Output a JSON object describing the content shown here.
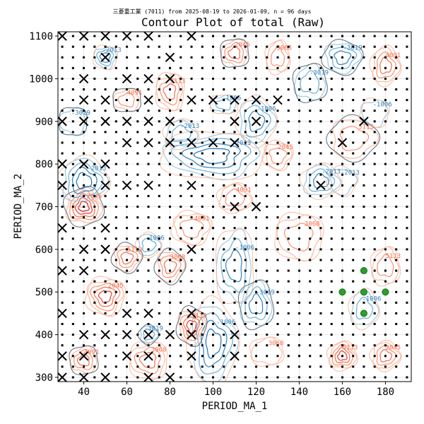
{
  "chart_data": {
    "type": "contour",
    "subtitle": "三菱重工業 (7011) from 2025-08-19 to 2026-01-09, n = 96 days",
    "title": "Contour Plot of total (Raw)",
    "xlabel": "PERIOD_MA_1",
    "ylabel": "PERIOD_MA_2",
    "xlim": [
      28,
      192
    ],
    "ylim": [
      290,
      1110
    ],
    "x_ticks": [
      "40",
      "60",
      "80",
      "100",
      "120",
      "140",
      "160",
      "180"
    ],
    "y_ticks": [
      "300",
      "400",
      "500",
      "600",
      "700",
      "800",
      "900",
      "1000",
      "1100"
    ],
    "grid": true,
    "contour_level_labels": [
      "-3019",
      "-2013",
      "-1006",
      "0",
      "2045",
      "3068",
      "4091",
      "5113"
    ],
    "colors": {
      "negative_strong": "#08519c",
      "negative_mid": "#3182bd",
      "negative_light": "#9ecae1",
      "zero": "#5a6a7a",
      "positive_light": "#fcbba1",
      "positive_mid": "#fb6a4a",
      "positive_strong": "#cb181d",
      "best_marker": "#2ca02c"
    },
    "markers": {
      "excluded_x": [
        [
          30,
          1100
        ],
        [
          40,
          1100
        ],
        [
          50,
          1100
        ],
        [
          60,
          1100
        ],
        [
          70,
          1100
        ],
        [
          90,
          1100
        ],
        [
          50,
          1050
        ],
        [
          80,
          1050
        ],
        [
          40,
          1000
        ],
        [
          60,
          1000
        ],
        [
          70,
          1000
        ],
        [
          80,
          1000
        ],
        [
          40,
          950
        ],
        [
          50,
          950
        ],
        [
          70,
          950
        ],
        [
          90,
          950
        ],
        [
          100,
          950
        ],
        [
          110,
          950
        ],
        [
          120,
          950
        ],
        [
          130,
          950
        ],
        [
          30,
          900
        ],
        [
          40,
          900
        ],
        [
          50,
          900
        ],
        [
          60,
          900
        ],
        [
          70,
          900
        ],
        [
          80,
          900
        ],
        [
          110,
          900
        ],
        [
          120,
          900
        ],
        [
          170,
          900
        ],
        [
          60,
          850
        ],
        [
          70,
          850
        ],
        [
          80,
          850
        ],
        [
          90,
          850
        ],
        [
          100,
          850
        ],
        [
          110,
          850
        ],
        [
          160,
          850
        ],
        [
          30,
          800
        ],
        [
          40,
          800
        ],
        [
          50,
          800
        ],
        [
          30,
          750
        ],
        [
          50,
          750
        ],
        [
          60,
          750
        ],
        [
          70,
          750
        ],
        [
          90,
          750
        ],
        [
          150,
          750
        ],
        [
          110,
          700
        ],
        [
          120,
          700
        ],
        [
          30,
          650
        ],
        [
          50,
          650
        ],
        [
          40,
          600
        ],
        [
          50,
          600
        ],
        [
          90,
          600
        ],
        [
          30,
          550
        ],
        [
          40,
          550
        ],
        [
          30,
          450
        ],
        [
          60,
          450
        ],
        [
          70,
          450
        ],
        [
          90,
          450
        ],
        [
          40,
          400
        ],
        [
          50,
          400
        ],
        [
          60,
          400
        ],
        [
          70,
          400
        ],
        [
          80,
          400
        ],
        [
          90,
          400
        ],
        [
          110,
          400
        ],
        [
          30,
          350
        ],
        [
          40,
          350
        ],
        [
          60,
          350
        ],
        [
          70,
          350
        ],
        [
          90,
          350
        ],
        [
          110,
          350
        ],
        [
          30,
          300
        ],
        [
          40,
          300
        ],
        [
          50,
          300
        ],
        [
          70,
          300
        ],
        [
          80,
          300
        ]
      ],
      "grid_points_x": [
        30,
        35,
        40,
        45,
        50,
        55,
        60,
        65,
        70,
        75,
        80,
        85,
        90,
        95,
        100,
        105,
        110,
        115,
        120,
        125,
        130,
        135,
        140,
        145,
        150,
        155,
        160,
        165,
        170,
        175,
        180,
        185,
        190
      ],
      "grid_points_y": [
        300,
        325,
        350,
        375,
        400,
        425,
        450,
        475,
        500,
        525,
        550,
        575,
        600,
        625,
        650,
        675,
        700,
        725,
        750,
        775,
        800,
        825,
        850,
        875,
        900,
        925,
        950,
        975,
        1000,
        1025,
        1050,
        1075,
        1100
      ],
      "best": [
        [
          170,
          550
        ],
        [
          160,
          500
        ],
        [
          170,
          500
        ],
        [
          180,
          500
        ],
        [
          170,
          450
        ]
      ]
    },
    "contour_blobs": [
      {
        "cx": 40,
        "cy": 700,
        "rx": 8,
        "ry": 40,
        "sign": 1,
        "strength": 5
      },
      {
        "cx": 40,
        "cy": 760,
        "rx": 10,
        "ry": 50,
        "sign": -1,
        "strength": 4
      },
      {
        "cx": 100,
        "cy": 380,
        "rx": 10,
        "ry": 90,
        "sign": -1,
        "strength": 4
      },
      {
        "cx": 90,
        "cy": 420,
        "rx": 6,
        "ry": 40,
        "sign": 1,
        "strength": 4
      },
      {
        "cx": 100,
        "cy": 820,
        "rx": 22,
        "ry": 50,
        "sign": -1,
        "strength": 4
      },
      {
        "cx": 110,
        "cy": 560,
        "rx": 8,
        "ry": 80,
        "sign": -1,
        "strength": 3
      },
      {
        "cx": 120,
        "cy": 470,
        "rx": 7,
        "ry": 50,
        "sign": -1,
        "strength": 3
      },
      {
        "cx": 150,
        "cy": 760,
        "rx": 8,
        "ry": 35,
        "sign": -1,
        "strength": 3
      },
      {
        "cx": 120,
        "cy": 900,
        "rx": 8,
        "ry": 50,
        "sign": -1,
        "strength": 3
      },
      {
        "cx": 160,
        "cy": 1050,
        "rx": 8,
        "ry": 35,
        "sign": -1,
        "strength": 3
      },
      {
        "cx": 50,
        "cy": 1050,
        "rx": 5,
        "ry": 25,
        "sign": -1,
        "strength": 3
      },
      {
        "cx": 105,
        "cy": 940,
        "rx": 6,
        "ry": 20,
        "sign": -1,
        "strength": 2
      },
      {
        "cx": 145,
        "cy": 990,
        "rx": 7,
        "ry": 40,
        "sign": -1,
        "strength": 2
      },
      {
        "cx": 85,
        "cy": 870,
        "rx": 7,
        "ry": 30,
        "sign": -1,
        "strength": 2
      },
      {
        "cx": 70,
        "cy": 610,
        "rx": 5,
        "ry": 25,
        "sign": -1,
        "strength": 2
      },
      {
        "cx": 60,
        "cy": 580,
        "rx": 6,
        "ry": 30,
        "sign": 1,
        "strength": 3
      },
      {
        "cx": 50,
        "cy": 490,
        "rx": 8,
        "ry": 40,
        "sign": 1,
        "strength": 4
      },
      {
        "cx": 70,
        "cy": 340,
        "rx": 8,
        "ry": 40,
        "sign": 1,
        "strength": 3
      },
      {
        "cx": 40,
        "cy": 340,
        "rx": 6,
        "ry": 30,
        "sign": 1,
        "strength": 3
      },
      {
        "cx": 160,
        "cy": 350,
        "rx": 6,
        "ry": 30,
        "sign": 1,
        "strength": 4
      },
      {
        "cx": 180,
        "cy": 350,
        "rx": 6,
        "ry": 30,
        "sign": 1,
        "strength": 3
      },
      {
        "cx": 80,
        "cy": 560,
        "rx": 6,
        "ry": 35,
        "sign": 1,
        "strength": 3
      },
      {
        "cx": 90,
        "cy": 650,
        "rx": 8,
        "ry": 35,
        "sign": 1,
        "strength": 2
      },
      {
        "cx": 80,
        "cy": 970,
        "rx": 6,
        "ry": 40,
        "sign": 1,
        "strength": 3
      },
      {
        "cx": 110,
        "cy": 1060,
        "rx": 6,
        "ry": 30,
        "sign": 1,
        "strength": 3
      },
      {
        "cx": 130,
        "cy": 1050,
        "rx": 5,
        "ry": 35,
        "sign": 1,
        "strength": 2
      },
      {
        "cx": 180,
        "cy": 1030,
        "rx": 6,
        "ry": 40,
        "sign": 1,
        "strength": 3
      },
      {
        "cx": 165,
        "cy": 860,
        "rx": 10,
        "ry": 45,
        "sign": 1,
        "strength": 2
      },
      {
        "cx": 130,
        "cy": 820,
        "rx": 6,
        "ry": 30,
        "sign": 1,
        "strength": 2
      },
      {
        "cx": 140,
        "cy": 630,
        "rx": 10,
        "ry": 50,
        "sign": 1,
        "strength": 2
      },
      {
        "cx": 60,
        "cy": 950,
        "rx": 6,
        "ry": 25,
        "sign": 1,
        "strength": 2
      },
      {
        "cx": 180,
        "cy": 560,
        "rx": 6,
        "ry": 40,
        "sign": 1,
        "strength": 2
      },
      {
        "cx": 170,
        "cy": 460,
        "rx": 6,
        "ry": 40,
        "sign": -1,
        "strength": 2
      },
      {
        "cx": 70,
        "cy": 400,
        "rx": 4,
        "ry": 20,
        "sign": -1,
        "strength": 2
      },
      {
        "cx": 160,
        "cy": 760,
        "rx": 6,
        "ry": 30,
        "sign": -1,
        "strength": 1
      },
      {
        "cx": 175,
        "cy": 920,
        "rx": 6,
        "ry": 30,
        "sign": -1,
        "strength": 1
      },
      {
        "cx": 35,
        "cy": 900,
        "rx": 6,
        "ry": 30,
        "sign": -1,
        "strength": 1
      },
      {
        "cx": 125,
        "cy": 360,
        "rx": 7,
        "ry": 30,
        "sign": 1,
        "strength": 1
      },
      {
        "cx": 110,
        "cy": 720,
        "rx": 7,
        "ry": 30,
        "sign": 1,
        "strength": 2
      }
    ]
  }
}
